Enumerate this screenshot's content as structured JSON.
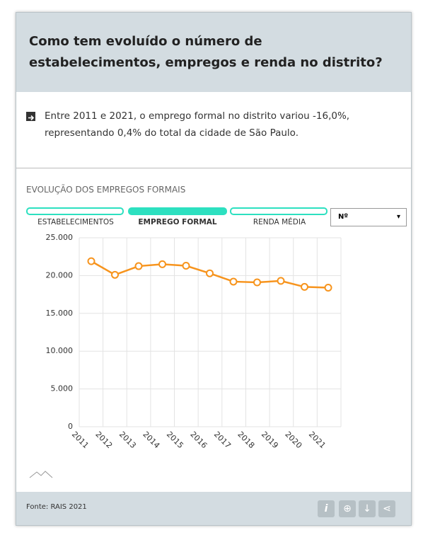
{
  "header": {
    "title": "Como tem evoluído o número de estabelecimentos, empregos e renda no distrito?"
  },
  "summary": "Entre 2011 e 2021, o emprego formal no distrito variou -16,0%, representando 0,4% do total da cidade de São Paulo.",
  "section_title": "EVOLUÇÃO DOS EMPREGOS FORMAIS",
  "tabs": [
    "ESTABELECIMENTOS",
    "EMPREGO FORMAL",
    "RENDA MÉDIA"
  ],
  "dropdown": "Nº",
  "footer": {
    "source": "Fonte: RAIS 2021"
  },
  "chart_data": {
    "type": "line",
    "categories": [
      "2011",
      "2012",
      "2013",
      "2014",
      "2015",
      "2016",
      "2017",
      "2018",
      "2019",
      "2020",
      "2021"
    ],
    "series": [
      {
        "name": "EMPREGO FORMAL",
        "color": "#f7941d",
        "values": [
          21900,
          20100,
          21250,
          21500,
          21300,
          20300,
          19200,
          19100,
          19300,
          18500,
          18400
        ]
      }
    ],
    "ylim": [
      0,
      25000
    ],
    "yticks": [
      0,
      {
        "value": 5000,
        "label": "5.000"
      },
      {
        "value": 10000,
        "label": "10.000"
      },
      {
        "value": 15000,
        "label": "15.000"
      },
      {
        "value": 20000,
        "label": "20.000"
      },
      {
        "value": 25000,
        "label": "25.000"
      }
    ],
    "grid": true
  }
}
